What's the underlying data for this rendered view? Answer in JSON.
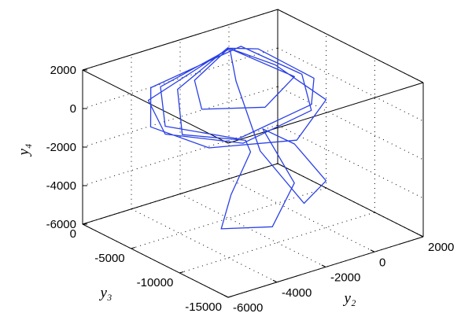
{
  "chart_data": {
    "type": "line3d",
    "xlabel": "y₂",
    "ylabel": "y₃",
    "zlabel": "y₄",
    "xlim": [
      -6000,
      2000
    ],
    "ylim": [
      -15000,
      0
    ],
    "zlim": [
      -6000,
      2000
    ],
    "xticks": [
      -6000,
      -4000,
      -2000,
      0,
      2000
    ],
    "yticks": [
      0,
      -5000,
      -10000,
      -15000
    ],
    "zticks": [
      -6000,
      -4000,
      -2000,
      0,
      2000
    ],
    "grid": true,
    "color": "#2a40e6",
    "x": [
      -1000,
      -4500,
      -5000,
      -3000,
      0,
      1000,
      -500,
      -4000,
      -5200,
      -4000,
      -1000,
      1200,
      500,
      -1000,
      -3500,
      -4500,
      -2500,
      -1500,
      -2500,
      -3500,
      -2000,
      -500,
      -1000,
      500,
      1000,
      -500,
      -1500,
      -1500,
      -1000,
      -3800,
      -4800,
      -3000,
      200,
      1300,
      0,
      -1000,
      -3000,
      -3500,
      -1500,
      300,
      -1000
    ],
    "y": [
      -2500,
      -3000,
      -6000,
      -9000,
      -8500,
      -5000,
      -2500,
      -2000,
      -5000,
      -8000,
      -9500,
      -7000,
      -3500,
      -2400,
      -3500,
      -6500,
      -8000,
      -6000,
      -6500,
      -8000,
      -9500,
      -8000,
      -6000,
      -5500,
      -7500,
      -9000,
      -7000,
      -4500,
      -2600,
      -2500,
      -5500,
      -8500,
      -8000,
      -5500,
      -3000,
      -2500,
      -4000,
      -6000,
      -7500,
      -6000,
      -2500
    ],
    "z": [
      1800,
      600,
      -200,
      -700,
      -300,
      300,
      1700,
      800,
      0,
      -800,
      -1200,
      -600,
      600,
      1800,
      900,
      -300,
      -1000,
      -2500,
      -4200,
      -5200,
      -5300,
      -4000,
      -1500,
      -3000,
      -4600,
      -4800,
      -2200,
      800,
      1800,
      900,
      0,
      -600,
      -200,
      100,
      1500,
      1800,
      1300,
      500,
      200,
      700,
      1800
    ]
  }
}
